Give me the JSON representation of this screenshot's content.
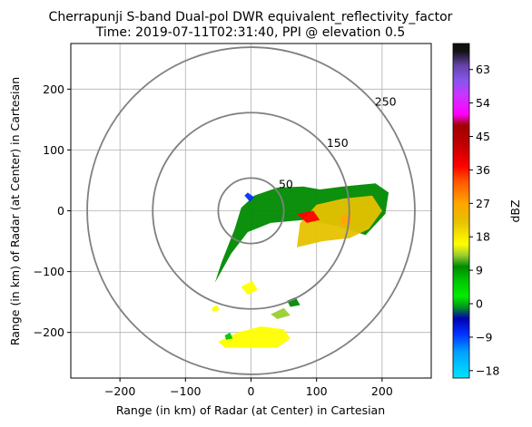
{
  "chart_data": {
    "type": "radar_ppi",
    "title_line1": "Cherrapunji S-band Dual-pol DWR equivalent_reflectivity_factor",
    "title_line2": "Time: 2019-07-11T02:31:40, PPI @ elevation 0.5",
    "xlabel": "Range (in km) of Radar (at Center) in Cartesian",
    "ylabel": "Range (in km) of Radar (at Center) in Cartesian",
    "xlim": [
      -275,
      275
    ],
    "ylim": [
      -275,
      275
    ],
    "xticks": [
      -200,
      -100,
      0,
      100,
      200
    ],
    "yticks": [
      200,
      100,
      0,
      -100,
      -200
    ],
    "xtick_labels": [
      "−200",
      "−100",
      "0",
      "100",
      "200"
    ],
    "ytick_labels": [
      "200",
      "100",
      "0",
      "−100",
      "−200"
    ],
    "grid": true,
    "range_rings": [
      {
        "radius": 50,
        "label": "50"
      },
      {
        "radius": 150,
        "label": "150"
      },
      {
        "radius": 250,
        "label": "250"
      }
    ],
    "colorbar": {
      "label": "dBZ",
      "range": [
        -20,
        70
      ],
      "ticks": [
        -18,
        -9,
        0,
        9,
        18,
        27,
        36,
        45,
        54,
        63
      ],
      "tick_labels": [
        "−18",
        "−9",
        "0",
        "9",
        "18",
        "27",
        "36",
        "45",
        "54",
        "63"
      ],
      "colors": [
        {
          "value": -20,
          "color": "#00e5ff"
        },
        {
          "value": -13,
          "color": "#00a0ff"
        },
        {
          "value": -8,
          "color": "#0030ff"
        },
        {
          "value": -4,
          "color": "#0000b0"
        },
        {
          "value": -1,
          "color": "#009020"
        },
        {
          "value": 2,
          "color": "#00ee00"
        },
        {
          "value": 6,
          "color": "#00c800"
        },
        {
          "value": 10,
          "color": "#008a00"
        },
        {
          "value": 13,
          "color": "#9acd32"
        },
        {
          "value": 16,
          "color": "#ffff00"
        },
        {
          "value": 22,
          "color": "#e6c200"
        },
        {
          "value": 27,
          "color": "#ffa500"
        },
        {
          "value": 33,
          "color": "#ff5500"
        },
        {
          "value": 37,
          "color": "#ff0000"
        },
        {
          "value": 43,
          "color": "#c00000"
        },
        {
          "value": 48,
          "color": "#a00000"
        },
        {
          "value": 51,
          "color": "#ff00ff"
        },
        {
          "value": 56,
          "color": "#cc33ff"
        },
        {
          "value": 60,
          "color": "#8855ee"
        },
        {
          "value": 64,
          "color": "#6644aa"
        },
        {
          "value": 68,
          "color": "#111111"
        }
      ]
    },
    "echo_regions": [
      {
        "desc": "main band",
        "points": [
          [
            -55,
            -118
          ],
          [
            -30,
            -70
          ],
          [
            -5,
            -35
          ],
          [
            30,
            -20
          ],
          [
            80,
            -15
          ],
          [
            130,
            -25
          ],
          [
            175,
            -40
          ],
          [
            205,
            -5
          ],
          [
            210,
            30
          ],
          [
            190,
            45
          ],
          [
            140,
            40
          ],
          [
            105,
            35
          ],
          [
            80,
            40
          ],
          [
            40,
            38
          ],
          [
            5,
            25
          ],
          [
            -15,
            5
          ],
          [
            -25,
            -30
          ],
          [
            -45,
            -85
          ]
        ],
        "dbz": 12
      },
      {
        "desc": "core",
        "points": [
          [
            70,
            -60
          ],
          [
            110,
            -50
          ],
          [
            150,
            -45
          ],
          [
            180,
            -30
          ],
          [
            200,
            0
          ],
          [
            185,
            25
          ],
          [
            140,
            20
          ],
          [
            100,
            10
          ],
          [
            75,
            -20
          ]
        ],
        "dbz": 24
      },
      {
        "desc": "hot spots",
        "points": [
          [
            70,
            -5
          ],
          [
            95,
            0
          ],
          [
            105,
            -15
          ],
          [
            85,
            -20
          ]
        ],
        "dbz": 38
      },
      {
        "desc": "east cell",
        "points": [
          [
            135,
            -10
          ],
          [
            150,
            -5
          ],
          [
            155,
            -20
          ],
          [
            140,
            -25
          ]
        ],
        "dbz": 30
      },
      {
        "desc": "blue patch",
        "points": [
          [
            -10,
            25
          ],
          [
            -2,
            15
          ],
          [
            5,
            22
          ],
          [
            -5,
            30
          ]
        ],
        "dbz": -6
      },
      {
        "desc": "south cell",
        "points": [
          [
            -50,
            -215
          ],
          [
            -20,
            -200
          ],
          [
            15,
            -190
          ],
          [
            50,
            -195
          ],
          [
            60,
            -210
          ],
          [
            40,
            -225
          ],
          [
            0,
            -225
          ],
          [
            -40,
            -225
          ]
        ],
        "dbz": 18
      },
      {
        "desc": "south small 1",
        "points": [
          [
            30,
            -170
          ],
          [
            50,
            -160
          ],
          [
            60,
            -172
          ],
          [
            40,
            -178
          ]
        ],
        "dbz": 14
      },
      {
        "desc": "south small 2",
        "points": [
          [
            -15,
            -125
          ],
          [
            2,
            -115
          ],
          [
            10,
            -130
          ],
          [
            -5,
            -138
          ]
        ],
        "dbz": 16
      },
      {
        "desc": "southeast small",
        "points": [
          [
            55,
            -148
          ],
          [
            68,
            -142
          ],
          [
            75,
            -155
          ],
          [
            60,
            -158
          ]
        ],
        "dbz": 10
      },
      {
        "desc": "west small",
        "points": [
          [
            -60,
            -160
          ],
          [
            -52,
            -155
          ],
          [
            -48,
            -163
          ],
          [
            -58,
            -166
          ]
        ],
        "dbz": 18
      },
      {
        "desc": "southwest small",
        "points": [
          [
            -40,
            -205
          ],
          [
            -32,
            -200
          ],
          [
            -28,
            -210
          ],
          [
            -38,
            -212
          ]
        ],
        "dbz": 6
      }
    ]
  }
}
